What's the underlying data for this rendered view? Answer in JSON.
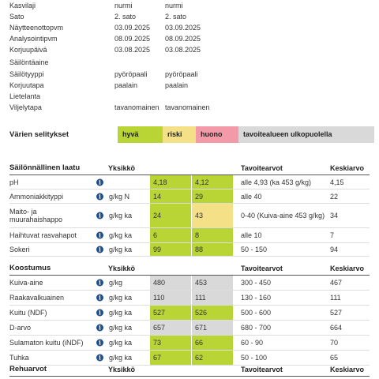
{
  "info_rows": [
    {
      "label": "Kasvilaji",
      "v1": "nurmi",
      "v2": "nurmi"
    },
    {
      "label": "Sato",
      "v1": "2. sato",
      "v2": "2. sato"
    },
    {
      "label": "Näytteenottopvm",
      "v1": "03.09.2025",
      "v2": "03.09.2025"
    },
    {
      "label": "Analysointipvm",
      "v1": "08.09.2025",
      "v2": "08.09.2025"
    },
    {
      "label": "Korjuupäivä",
      "v1": "03.08.2025",
      "v2": "03.08.2025"
    },
    {
      "label": "Säilöntäaine",
      "v1": "",
      "v2": ""
    },
    {
      "label": "Säilötyyppi",
      "v1": "pyöröpaali",
      "v2": "pyöröpaali"
    },
    {
      "label": "Korjuutapa",
      "v1": "paalain",
      "v2": "paalain"
    },
    {
      "label": "Lietelanta",
      "v1": "",
      "v2": ""
    },
    {
      "label": "Viljelytapa",
      "v1": "tavanomainen",
      "v2": "tavanomainen"
    }
  ],
  "legend": {
    "title": "Värien selitykset",
    "good": "hyvä",
    "risk": "riski",
    "bad": "huono",
    "outside": "tavoitealueen ulkopuolella"
  },
  "colors": {
    "good": "#b8d435",
    "risk": "#f4e087",
    "bad": "#f39aa8",
    "outside": "#d9d9d9",
    "info_icon": "#1f4f8c"
  },
  "preservation": {
    "headers": {
      "label": "Säilönnällinen laatu",
      "unit": "Yksikkö",
      "target": "Tavoitearvot",
      "avg": "Keskiarvo"
    },
    "rows": [
      {
        "label": "pH",
        "unit": "",
        "a": "4,18",
        "a_status": "good",
        "b": "4,12",
        "b_status": "good",
        "target": "alle 4,93 (ka 453 g/kg)",
        "avg": "4,15"
      },
      {
        "label": "Ammoniakkityppi",
        "unit": "g/kg N",
        "a": "14",
        "a_status": "good",
        "b": "29",
        "b_status": "good",
        "target": "alle 40",
        "avg": "22"
      },
      {
        "label": "Maito- ja muurahaishappo",
        "label_line1": "Maito- ja",
        "label_line2": "muurahaishappo",
        "unit": "g/kg ka",
        "a": "24",
        "a_status": "good",
        "b": "43",
        "b_status": "risk",
        "target": "0-40 (Kuiva-aine 453 g/kg)",
        "avg": "34"
      },
      {
        "label": "Haihtuvat rasvahapot",
        "unit": "g/kg ka",
        "a": "6",
        "a_status": "good",
        "b": "8",
        "b_status": "good",
        "target": "alle 10",
        "avg": "7"
      },
      {
        "label": "Sokeri",
        "unit": "g/kg ka",
        "a": "99",
        "a_status": "good",
        "b": "88",
        "b_status": "good",
        "target": "50 - 150",
        "avg": "94"
      }
    ]
  },
  "composition": {
    "headers": {
      "label": "Koostumus",
      "unit": "Yksikkö",
      "target": "Tavoitearvot",
      "avg": "Keskiarvo"
    },
    "rows": [
      {
        "label": "Kuiva-aine",
        "unit": "g/kg",
        "a": "480",
        "a_status": "out",
        "b": "453",
        "b_status": "out",
        "target": "300 - 450",
        "avg": "467"
      },
      {
        "label": "Raakavalkuainen",
        "unit": "g/kg ka",
        "a": "110",
        "a_status": "out",
        "b": "111",
        "b_status": "out",
        "target": "130 - 160",
        "avg": "111"
      },
      {
        "label": "Kuitu (NDF)",
        "unit": "g/kg ka",
        "a": "527",
        "a_status": "good",
        "b": "526",
        "b_status": "good",
        "target": "500 - 600",
        "avg": "527"
      },
      {
        "label": "D-arvo",
        "unit": "g/kg ka",
        "a": "657",
        "a_status": "out",
        "b": "671",
        "b_status": "out",
        "target": "680 - 700",
        "avg": "664"
      },
      {
        "label": "Sulamaton kuitu (iNDF)",
        "unit": "g/kg ka",
        "a": "73",
        "a_status": "good",
        "b": "66",
        "b_status": "good",
        "target": "60 - 90",
        "avg": "70"
      },
      {
        "label": "Tuhka",
        "unit": "g/kg ka",
        "a": "67",
        "a_status": "good",
        "b": "62",
        "b_status": "good",
        "target": "50 - 100",
        "avg": "65"
      }
    ]
  },
  "feed_values": {
    "headers": {
      "label": "Rehuarvot",
      "unit": "Yksikkö",
      "target": "Tavoitearvot",
      "avg": "Keskiarvo"
    }
  }
}
